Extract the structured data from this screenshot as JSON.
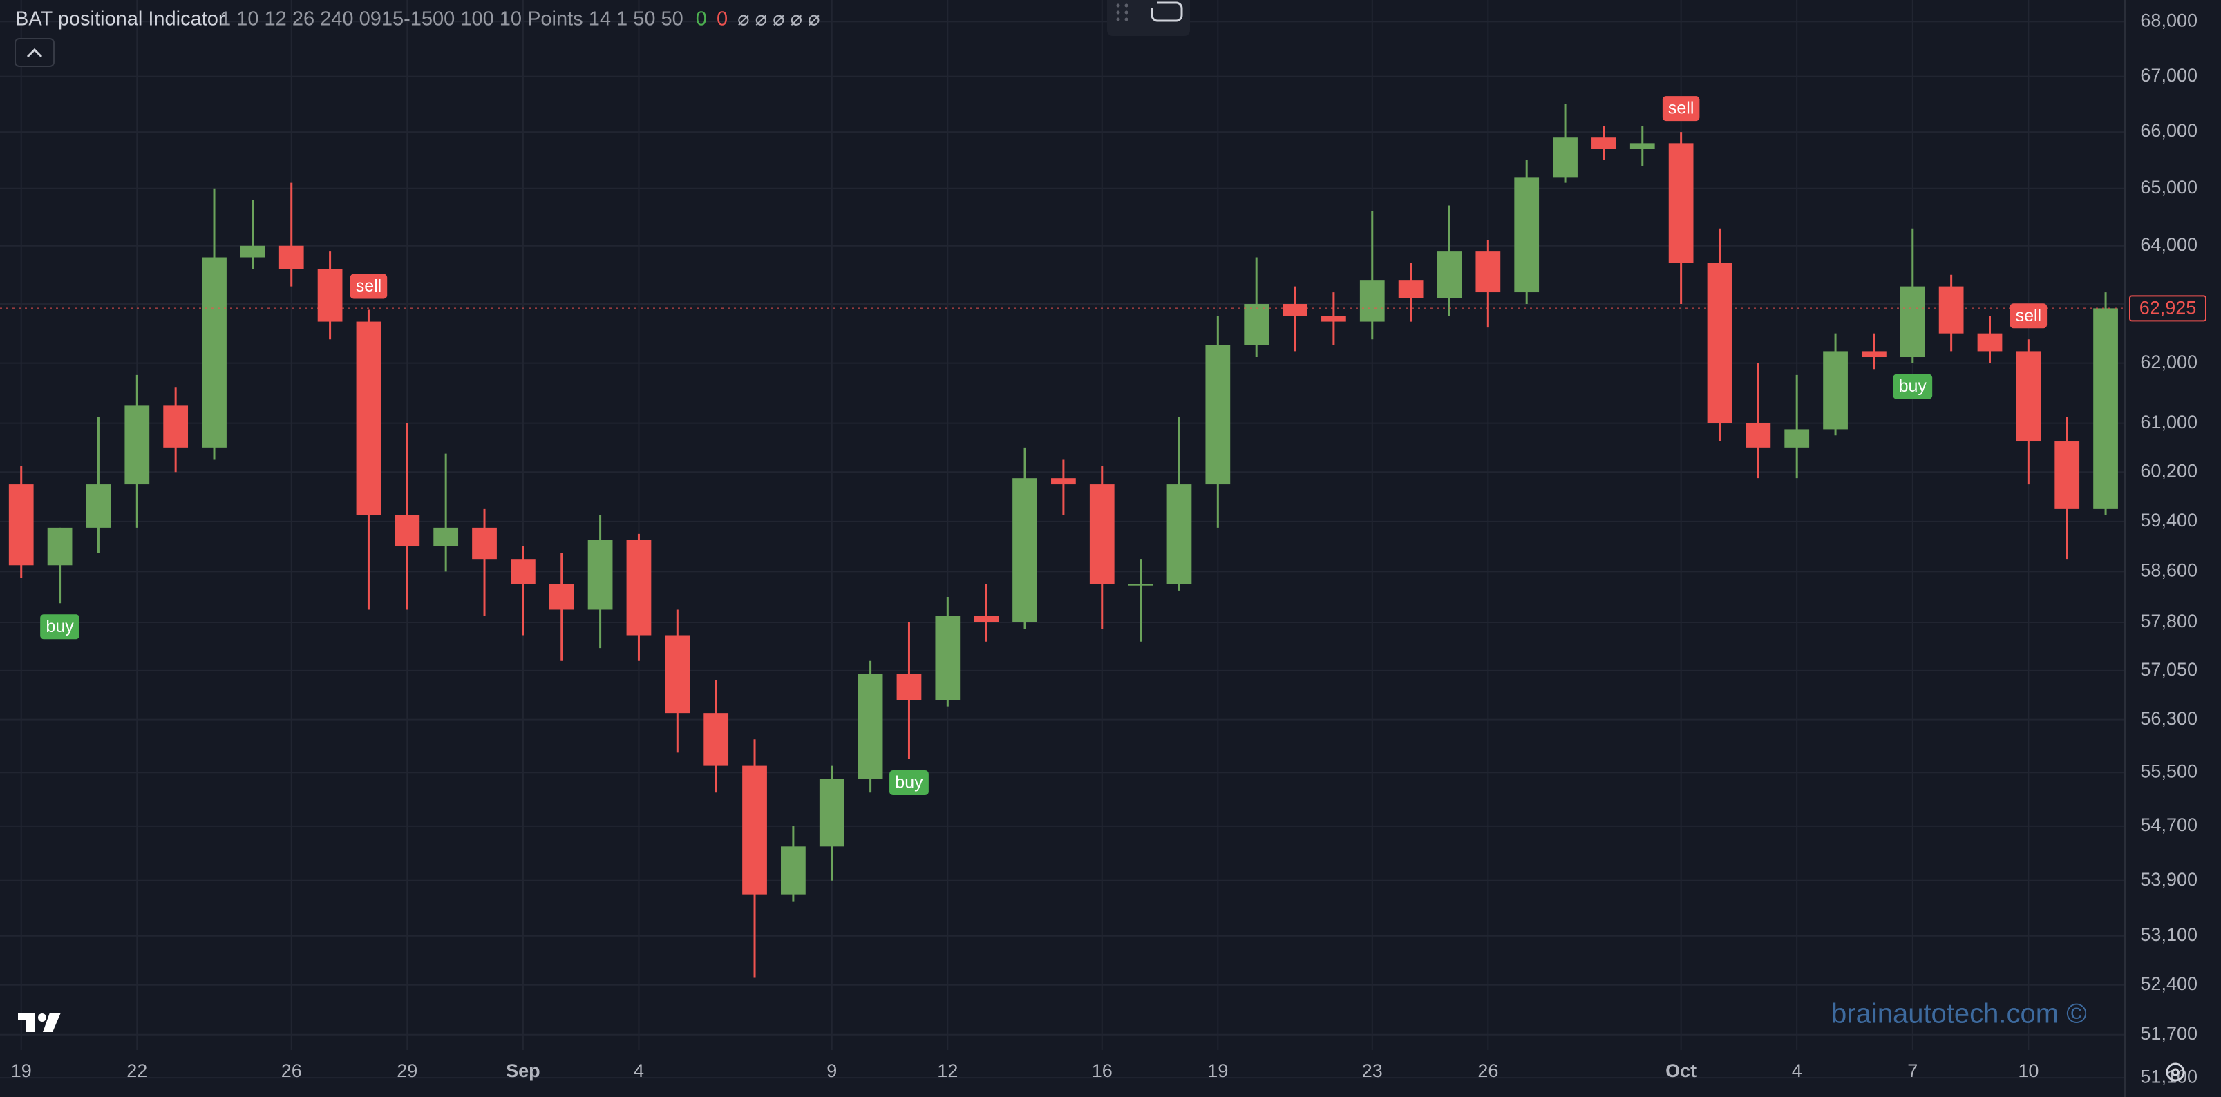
{
  "chart_data": {
    "type": "candlestick",
    "title": "BAT positional Indicator",
    "params": "1 10 12 26 240 0915-1500 100 10 Points 14 1 50 50",
    "status": [
      {
        "text": "0",
        "color": "#4caf50"
      },
      {
        "text": "0",
        "color": "#ef5350"
      },
      {
        "text": "⌀ ⌀ ⌀ ⌀ ⌀",
        "color": "#b2b5be"
      }
    ],
    "watermark": "brainautotech.com ©",
    "log_scale": true,
    "grid": true,
    "up_color": "#6ba35b",
    "down_color": "#ef5350",
    "xlim": [
      -0.55,
      54.5
    ],
    "xticks": [
      {
        "value": 0,
        "label": "19"
      },
      {
        "value": 3,
        "label": "22"
      },
      {
        "value": 7,
        "label": "26"
      },
      {
        "value": 10,
        "label": "29"
      },
      {
        "value": 13,
        "label": "Sep"
      },
      {
        "value": 16,
        "label": "4"
      },
      {
        "value": 21,
        "label": "9"
      },
      {
        "value": 24,
        "label": "12"
      },
      {
        "value": 28,
        "label": "16"
      },
      {
        "value": 31,
        "label": "19"
      },
      {
        "value": 35,
        "label": "23"
      },
      {
        "value": 38,
        "label": "26"
      },
      {
        "value": 43,
        "label": "Oct"
      },
      {
        "value": 46,
        "label": "4"
      },
      {
        "value": 49,
        "label": "7"
      },
      {
        "value": 52,
        "label": "10"
      }
    ],
    "ylim": [
      50835,
      68400
    ],
    "yticks": [
      {
        "value": 68000,
        "label": "68,000"
      },
      {
        "value": 67000,
        "label": "67,000"
      },
      {
        "value": 66000,
        "label": "66,000"
      },
      {
        "value": 65000,
        "label": "65,000"
      },
      {
        "value": 64000,
        "label": "64,000"
      },
      {
        "value": 63000,
        "label": "63,000"
      },
      {
        "value": 62000,
        "label": "62,000"
      },
      {
        "value": 61000,
        "label": "61,000"
      },
      {
        "value": 60200,
        "label": "60,200"
      },
      {
        "value": 59400,
        "label": "59,400"
      },
      {
        "value": 58600,
        "label": "58,600"
      },
      {
        "value": 57800,
        "label": "57,800"
      },
      {
        "value": 57050,
        "label": "57,050"
      },
      {
        "value": 56300,
        "label": "56,300"
      },
      {
        "value": 55500,
        "label": "55,500"
      },
      {
        "value": 54700,
        "label": "54,700"
      },
      {
        "value": 53900,
        "label": "53,900"
      },
      {
        "value": 53100,
        "label": "53,100"
      },
      {
        "value": 52400,
        "label": "52,400"
      },
      {
        "value": 51700,
        "label": "51,700"
      },
      {
        "value": 51100,
        "label": "51,100"
      }
    ],
    "last_price": {
      "value": 62925,
      "label": "62,925"
    },
    "x": [
      0,
      1,
      2,
      3,
      4,
      5,
      6,
      7,
      8,
      9,
      10,
      11,
      12,
      13,
      14,
      15,
      16,
      17,
      18,
      19,
      20,
      21,
      22,
      23,
      24,
      25,
      26,
      27,
      28,
      29,
      30,
      31,
      32,
      33,
      34,
      35,
      36,
      37,
      38,
      39,
      40,
      41,
      42,
      43,
      44,
      45,
      46,
      47,
      48,
      49,
      50,
      51,
      52,
      53,
      54
    ],
    "open": [
      60000,
      58700,
      59300,
      60000,
      61300,
      60600,
      63800,
      64000,
      63600,
      62700,
      59500,
      59000,
      59300,
      58800,
      58400,
      58000,
      59100,
      57600,
      56400,
      55600,
      53700,
      54400,
      55400,
      57000,
      56600,
      57900,
      57800,
      60100,
      60000,
      58400,
      58400,
      60000,
      62300,
      63000,
      62800,
      62700,
      63400,
      63100,
      63900,
      63200,
      65200,
      65900,
      65700,
      65800,
      63700,
      61000,
      60600,
      60900,
      62200,
      62100,
      63300,
      62500,
      62200,
      60700,
      59600
    ],
    "high": [
      60300,
      59300,
      61100,
      61800,
      61600,
      65000,
      64800,
      65100,
      63900,
      62900,
      61000,
      60500,
      59600,
      59000,
      58900,
      59500,
      59200,
      58000,
      56900,
      56000,
      54700,
      55600,
      57200,
      57800,
      58200,
      58400,
      60600,
      60400,
      60300,
      58800,
      61100,
      62800,
      63800,
      63300,
      63200,
      64600,
      63700,
      64700,
      64100,
      65500,
      66500,
      66100,
      66100,
      66000,
      64300,
      62000,
      61800,
      62500,
      62500,
      64300,
      63500,
      62800,
      62400,
      61100,
      63200
    ],
    "low": [
      58500,
      58100,
      58900,
      59300,
      60200,
      60400,
      63600,
      63300,
      62400,
      58000,
      58000,
      58600,
      57900,
      57600,
      57200,
      57400,
      57200,
      55800,
      55200,
      52500,
      53600,
      53900,
      55200,
      55700,
      56500,
      57500,
      57700,
      59500,
      57700,
      57500,
      58300,
      59300,
      62100,
      62200,
      62300,
      62400,
      62700,
      62800,
      62600,
      63000,
      65100,
      65500,
      65400,
      63000,
      60700,
      60100,
      60100,
      60800,
      61900,
      62000,
      62200,
      62000,
      60000,
      58800,
      59500
    ],
    "close": [
      58700,
      59300,
      60000,
      61300,
      60600,
      63800,
      64000,
      63600,
      62700,
      59500,
      59000,
      59300,
      58800,
      58400,
      58000,
      59100,
      57600,
      56400,
      55600,
      53700,
      54400,
      55400,
      57000,
      56600,
      57900,
      57800,
      60100,
      60000,
      58400,
      58400,
      60000,
      62300,
      63000,
      62800,
      62700,
      63400,
      63100,
      63900,
      63200,
      65200,
      65900,
      65700,
      65800,
      63700,
      61000,
      60600,
      60900,
      62200,
      62100,
      63300,
      62500,
      62200,
      60700,
      59600,
      62925
    ],
    "signals": [
      {
        "label": "buy",
        "index": 1,
        "color": "#4caf50"
      },
      {
        "label": "sell",
        "index": 9,
        "color": "#ef5350"
      },
      {
        "label": "buy",
        "index": 23,
        "color": "#4caf50"
      },
      {
        "label": "sell",
        "index": 43,
        "color": "#ef5350"
      },
      {
        "label": "buy",
        "index": 49,
        "color": "#4caf50"
      },
      {
        "label": "sell",
        "index": 52,
        "color": "#ef5350"
      }
    ]
  }
}
